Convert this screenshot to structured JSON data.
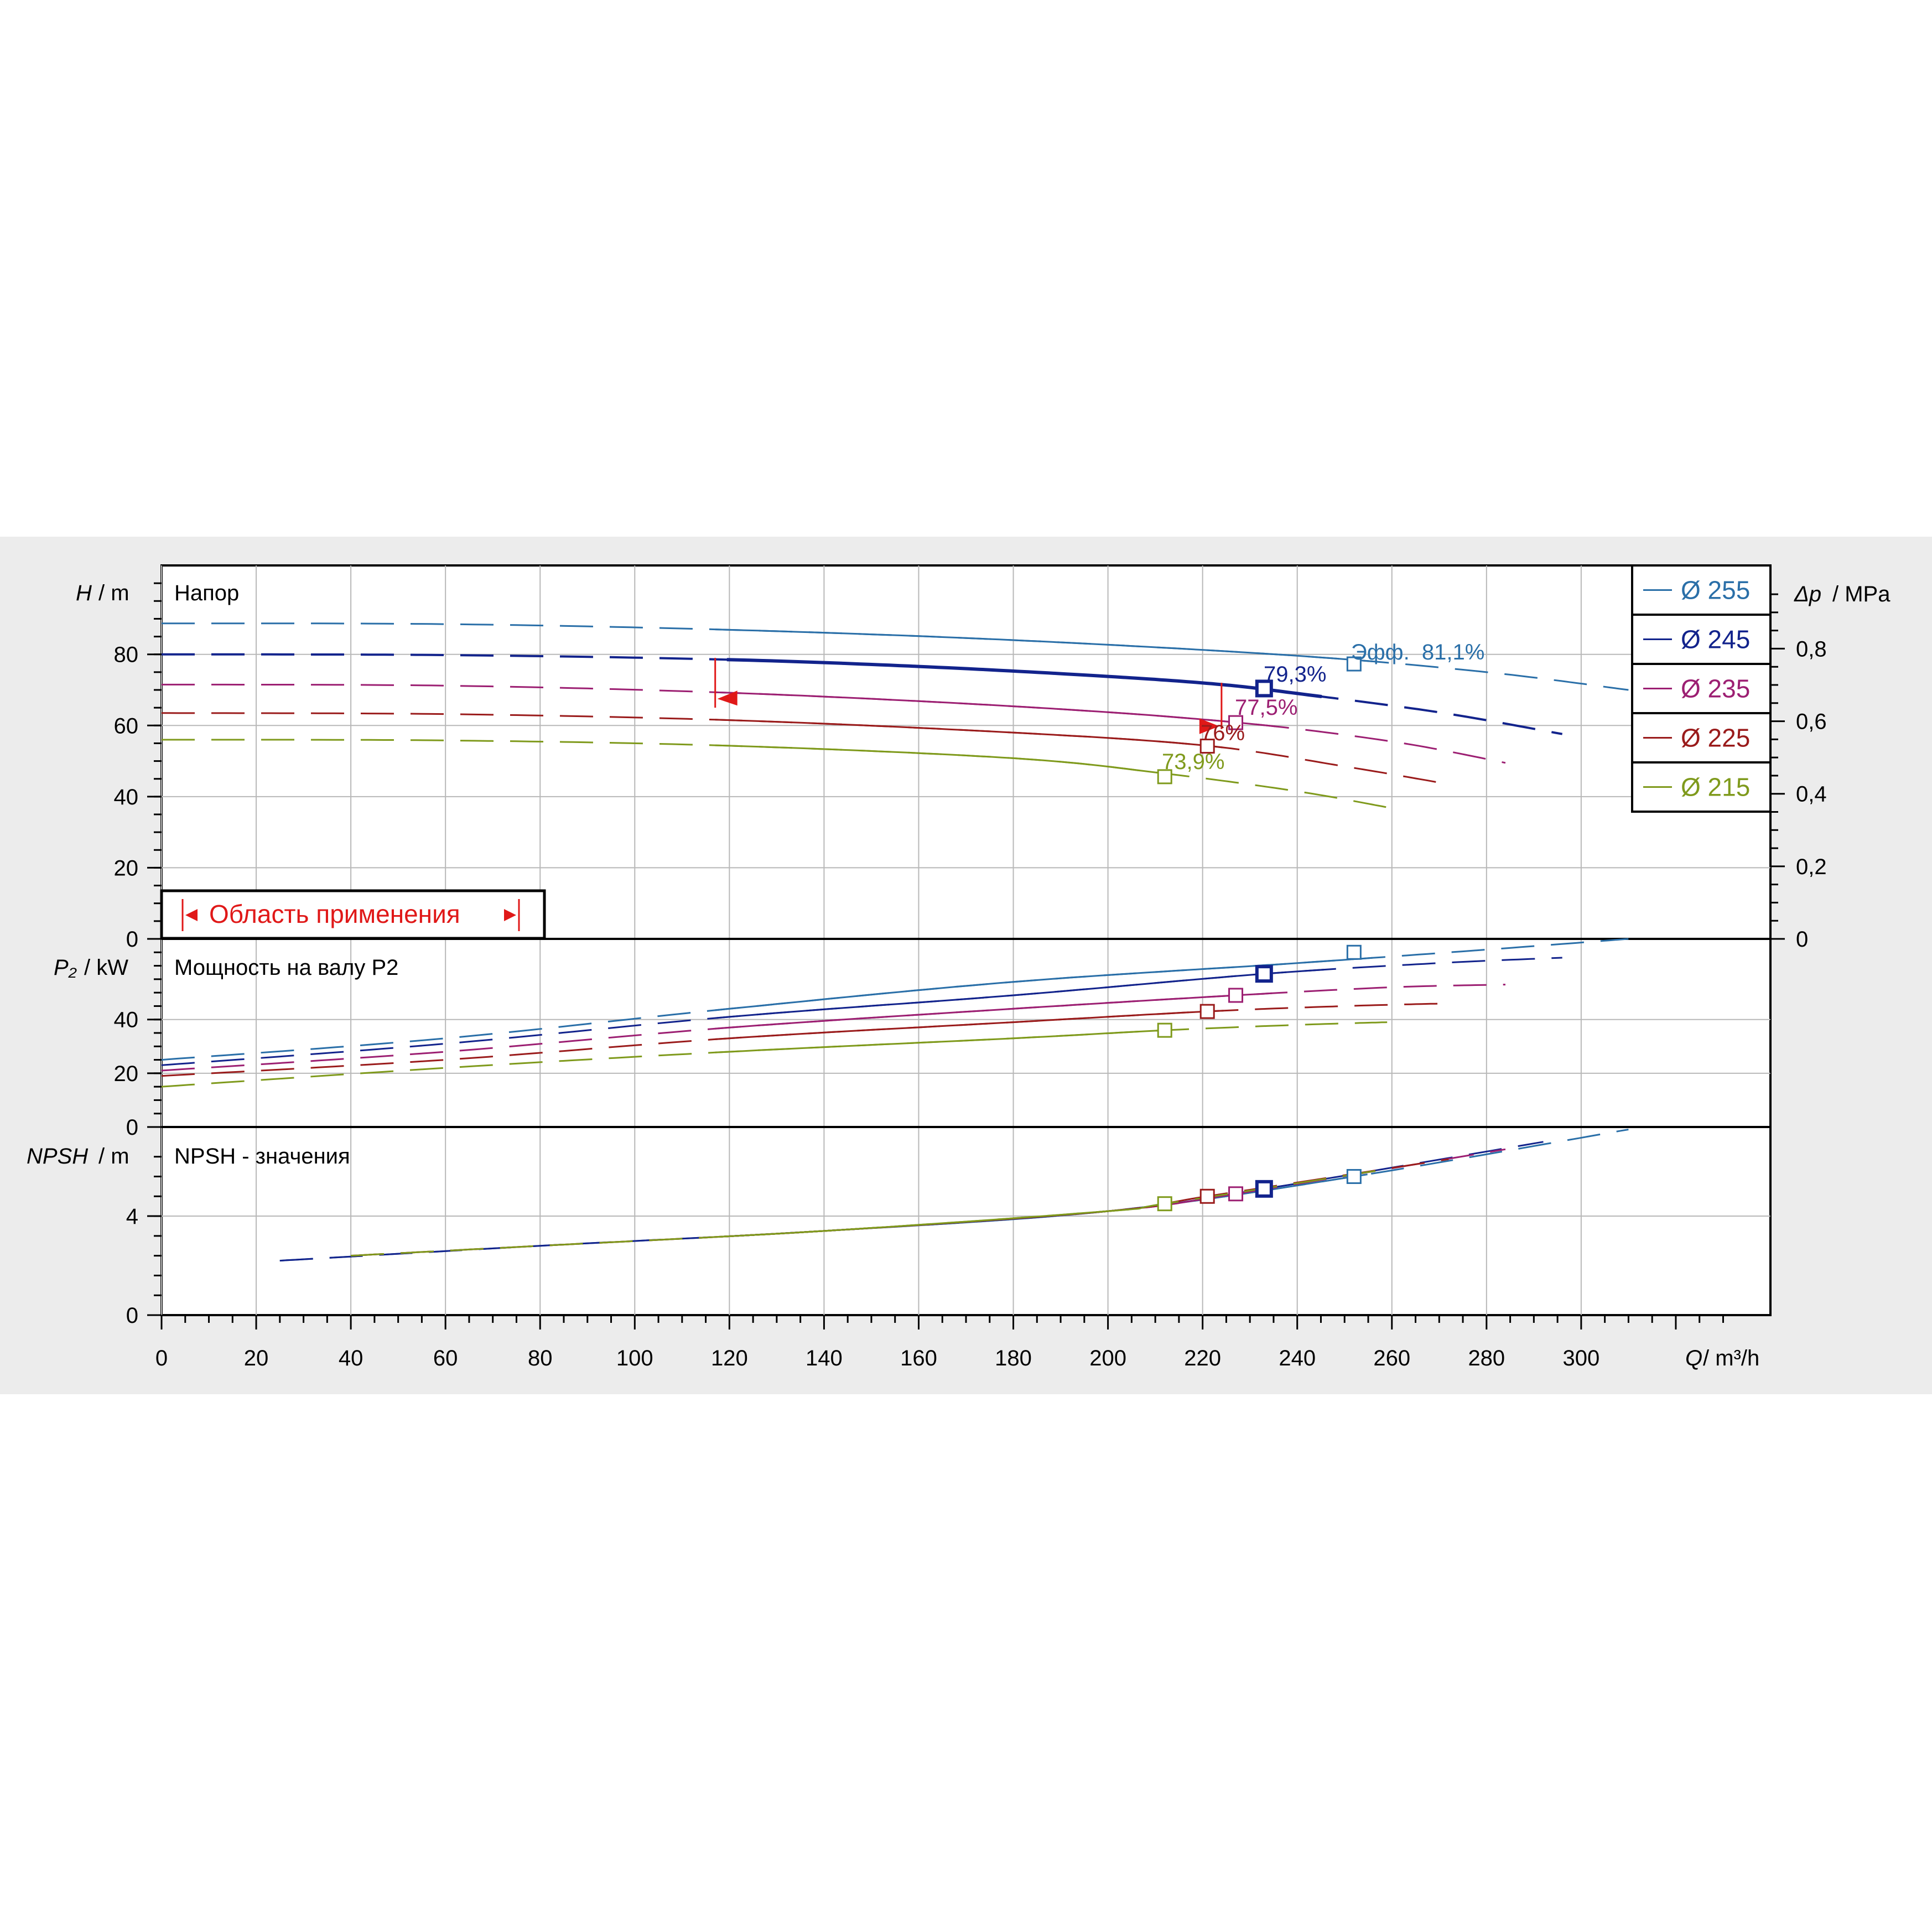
{
  "colors": {
    "background": "#ececec",
    "plot": "#ffffff",
    "grid": "#b8b8b8",
    "axis": "#000000",
    "operating": "#e01818"
  },
  "panels": {
    "head": {
      "ylabel_sym": "H",
      "ylabel_unit": "/ m",
      "title": "Напор",
      "right_sym": "Δp",
      "right_unit": "/ MPa"
    },
    "power": {
      "ylabel_sym": "P₂",
      "ylabel_unit": "/ kW",
      "title": "Мощность на валу P2"
    },
    "npsh": {
      "ylabel_sym": "NPSH",
      "ylabel_unit": "/ m",
      "title": "NPSH - значения"
    }
  },
  "x_axis": {
    "sym": "Q",
    "unit": "/ m³/h"
  },
  "application_range": {
    "label": "Область применения"
  },
  "legend": [
    {
      "label": "Ø 255",
      "color": "#2a6fa8"
    },
    {
      "label": "Ø 245",
      "color": "#12238c"
    },
    {
      "label": "Ø 235",
      "color": "#9c1f72"
    },
    {
      "label": "Ø 225",
      "color": "#9a1b1b"
    },
    {
      "label": "Ø 215",
      "color": "#7f9a1c"
    }
  ],
  "efficiency_labels": [
    {
      "text": "Эфф.  81,1%",
      "color": "#2a6fa8"
    },
    {
      "text": "79,3%",
      "color": "#12238c"
    },
    {
      "text": "77,5%",
      "color": "#9c1f72"
    },
    {
      "text": "76%",
      "color": "#9a1b1b"
    },
    {
      "text": "73,9%",
      "color": "#7f9a1c"
    }
  ],
  "chart_data": [
    {
      "type": "line",
      "title": "Напор",
      "xlabel": "Q / m³/h",
      "ylabel": "H / m",
      "ylabel_right": "Δp / MPa",
      "xlim": [
        0,
        340
      ],
      "ylim": [
        0,
        105
      ],
      "x_ticks": [
        0,
        20,
        40,
        60,
        80,
        100,
        120,
        140,
        160,
        180,
        200,
        220,
        240,
        260,
        280,
        300
      ],
      "y_ticks": [
        0,
        20,
        40,
        60,
        80
      ],
      "y_right_ticks": [
        "0",
        "0,2",
        "0,4",
        "0,6",
        "0,8"
      ],
      "y_right_values": [
        0,
        0.2,
        0.4,
        0.6,
        0.8
      ],
      "series": [
        {
          "name": "Ø 255",
          "color_index": 0,
          "x": [
            0,
            60,
            120,
            180,
            240,
            280,
            310
          ],
          "y": [
            88.7,
            88.5,
            86.9,
            84.0,
            79.6,
            75.0,
            70.0
          ],
          "best": [
            252,
            77.3
          ],
          "eff_at": [
            252,
            80.5
          ]
        },
        {
          "name": "Ø 245",
          "color_index": 1,
          "x": [
            0,
            60,
            117,
            160,
            200,
            224,
            240,
            270,
            296
          ],
          "y": [
            80.0,
            79.8,
            78.6,
            76.6,
            73.8,
            71.5,
            69.0,
            63.7,
            57.6
          ],
          "best": [
            233,
            70.4
          ],
          "eff_at": [
            233,
            74.5
          ]
        },
        {
          "name": "Ø 235",
          "color_index": 2,
          "x": [
            0,
            60,
            120,
            180,
            226,
            260,
            284
          ],
          "y": [
            71.5,
            71.2,
            69.2,
            65.4,
            61.0,
            55.5,
            49.5
          ],
          "best": [
            227,
            60.8
          ],
          "eff_at": [
            227,
            65.5
          ]
        },
        {
          "name": "Ø 225",
          "color_index": 3,
          "x": [
            0,
            60,
            120,
            180,
            221,
            250,
            272
          ],
          "y": [
            63.5,
            63.2,
            61.5,
            58.0,
            54.3,
            48.5,
            43.5
          ],
          "best": [
            221,
            54.2
          ],
          "eff_at": [
            222,
            58.0
          ]
        },
        {
          "name": "Ø 215",
          "color_index": 4,
          "x": [
            0,
            60,
            120,
            180,
            212,
            240,
            259
          ],
          "y": [
            56.0,
            55.8,
            54.3,
            50.8,
            46.5,
            41.5,
            37.0
          ],
          "best": [
            212,
            45.6
          ],
          "eff_at": [
            212,
            49.5
          ]
        }
      ],
      "operating_range": {
        "q_min": 117,
        "q_max": 224
      }
    },
    {
      "type": "line",
      "title": "Мощность на валу P2",
      "xlabel": "Q / m³/h",
      "ylabel": "P₂ / kW",
      "xlim": [
        0,
        340
      ],
      "ylim": [
        0,
        70
      ],
      "y_ticks": [
        0,
        20,
        40
      ],
      "series": [
        {
          "name": "Ø 255",
          "color_index": 0,
          "x": [
            0,
            60,
            120,
            180,
            240,
            280,
            310
          ],
          "y": [
            25,
            33,
            44,
            54,
            61,
            66,
            70
          ],
          "best": [
            252,
            65
          ]
        },
        {
          "name": "Ø 245",
          "color_index": 1,
          "x": [
            0,
            60,
            120,
            180,
            233,
            270,
            296
          ],
          "y": [
            23,
            31,
            41,
            49,
            57,
            61,
            63
          ],
          "best": [
            233,
            57
          ]
        },
        {
          "name": "Ø 235",
          "color_index": 2,
          "x": [
            0,
            60,
            120,
            180,
            227,
            260,
            284
          ],
          "y": [
            21,
            28,
            37,
            44,
            49,
            52,
            53
          ],
          "best": [
            227,
            49
          ]
        },
        {
          "name": "Ø 225",
          "color_index": 3,
          "x": [
            0,
            60,
            120,
            180,
            221,
            250,
            272
          ],
          "y": [
            19,
            25,
            33,
            39,
            43,
            45,
            46
          ],
          "best": [
            221,
            43
          ]
        },
        {
          "name": "Ø 215",
          "color_index": 4,
          "x": [
            0,
            60,
            120,
            180,
            212,
            240,
            259
          ],
          "y": [
            15,
            22,
            28,
            33,
            36,
            38,
            39
          ],
          "best": [
            212,
            36
          ]
        }
      ]
    },
    {
      "type": "line",
      "title": "NPSH - значения",
      "xlabel": "Q / m³/h",
      "ylabel": "NPSH / m",
      "xlim": [
        0,
        340
      ],
      "ylim": [
        0,
        7.6
      ],
      "y_ticks": [
        0,
        4
      ],
      "series": [
        {
          "name": "Ø 255",
          "color_index": 0,
          "x": [
            25,
            80,
            140,
            200,
            252,
            310
          ],
          "y": [
            2.2,
            2.8,
            3.4,
            4.2,
            5.6,
            7.5
          ],
          "best": [
            252,
            5.6
          ]
        },
        {
          "name": "Ø 245",
          "color_index": 1,
          "x": [
            25,
            80,
            140,
            200,
            233,
            292
          ],
          "y": [
            2.2,
            2.8,
            3.4,
            4.2,
            5.1,
            7.0
          ],
          "best": [
            233,
            5.1
          ]
        },
        {
          "name": "Ø 235",
          "color_index": 2,
          "x": [
            40,
            80,
            140,
            200,
            227,
            284
          ],
          "y": [
            2.4,
            2.8,
            3.4,
            4.2,
            4.9,
            6.7
          ],
          "best": [
            227,
            4.9
          ]
        },
        {
          "name": "Ø 225",
          "color_index": 3,
          "x": [
            40,
            80,
            140,
            200,
            221,
            272
          ],
          "y": [
            2.4,
            2.8,
            3.4,
            4.2,
            4.8,
            6.3
          ],
          "best": [
            221,
            4.8
          ]
        },
        {
          "name": "Ø 215",
          "color_index": 4,
          "x": [
            40,
            80,
            140,
            200,
            212,
            259
          ],
          "y": [
            2.4,
            2.8,
            3.4,
            4.2,
            4.5,
            5.9
          ],
          "best": [
            212,
            4.5
          ]
        }
      ]
    }
  ]
}
